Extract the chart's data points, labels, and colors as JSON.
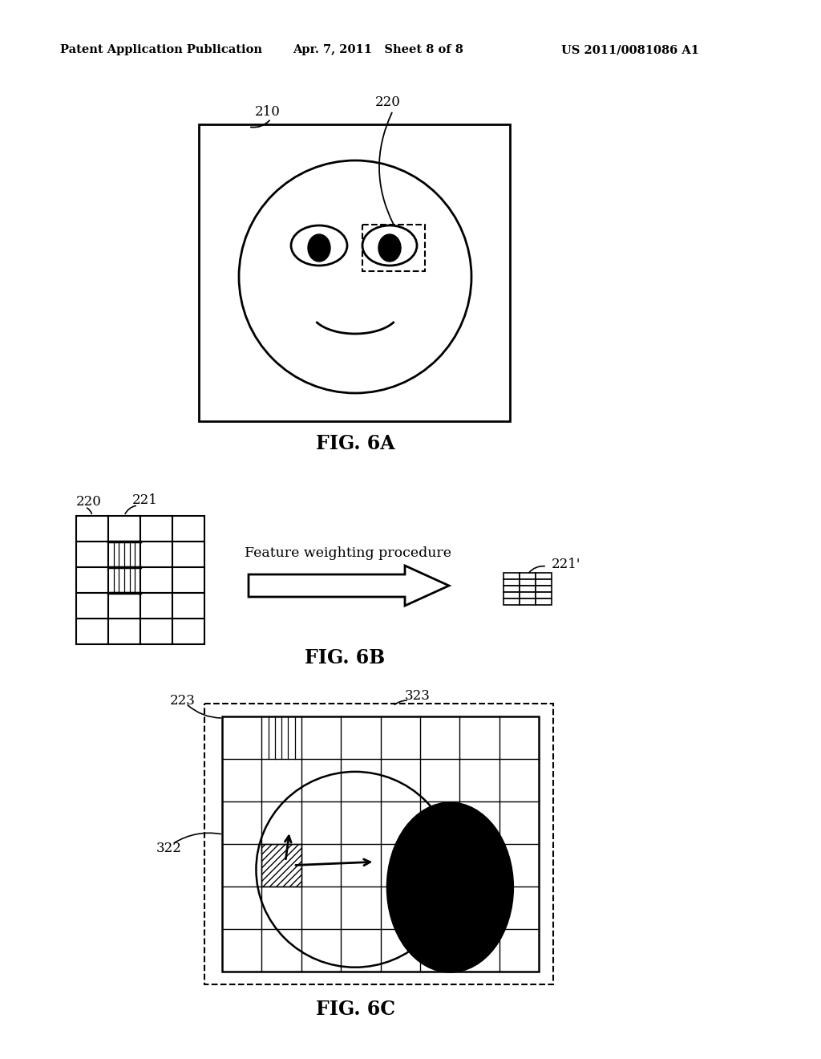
{
  "bg_color": "#ffffff",
  "line_color": "#000000",
  "header_left": "Patent Application Publication",
  "header_center": "Apr. 7, 2011   Sheet 8 of 8",
  "header_right": "US 2011/0081086 A1",
  "fig6a_label": "FIG. 6A",
  "fig6b_label": "FIG. 6B",
  "fig6c_label": "FIG. 6C",
  "label_210": "210",
  "label_220_a": "220",
  "label_220_b": "220",
  "label_221": "221",
  "label_221p": "221'",
  "label_223": "223",
  "label_322": "322",
  "label_323": "323",
  "feature_text": "Feature weighting procedure"
}
